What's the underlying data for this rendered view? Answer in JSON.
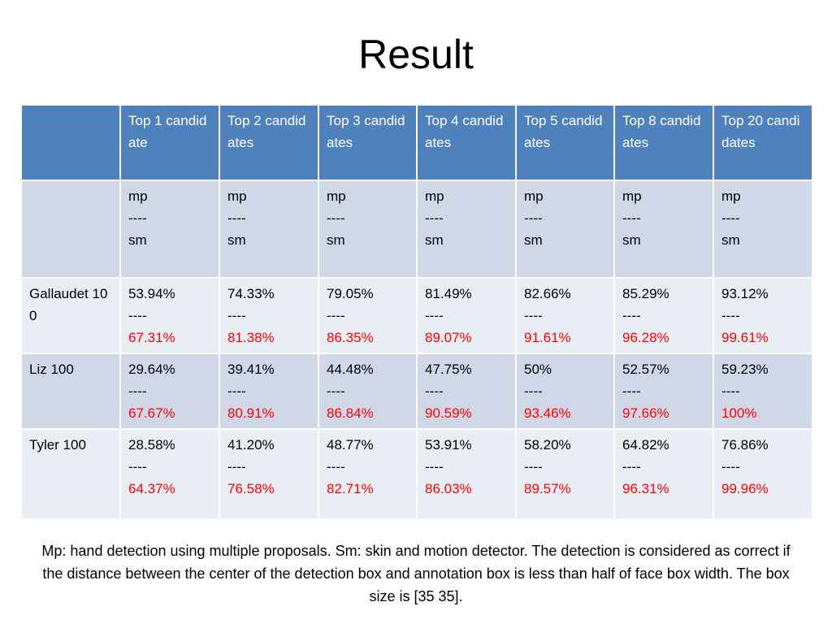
{
  "slide": {
    "title": "Result",
    "caption": "Mp: hand detection using multiple proposals. Sm: skin and motion detector. The detection is considered as correct if the distance between the center of the detection box and annotation box is less than half of face box width. The box size is [35 35]."
  },
  "table": {
    "headers": [
      "",
      "Top 1 candidate",
      "Top 2 candidates",
      "Top 3 candidates",
      "Top 4 candidates",
      "Top 5 candidates",
      "Top 8 candidates",
      "Top 20 candidates"
    ],
    "legend_row": {
      "label": "",
      "mp": "mp",
      "sep": "----",
      "sm": "sm"
    },
    "rows": [
      {
        "label": "Gallaudet 100",
        "mp": [
          "53.94%",
          "74.33%",
          "79.05%",
          "81.49%",
          "82.66%",
          "85.29%",
          "93.12%"
        ],
        "sm": [
          "67.31%",
          "81.38%",
          "86.35%",
          "89.07%",
          "91.61%",
          "96.28%",
          "99.61%"
        ]
      },
      {
        "label": "Liz 100",
        "mp": [
          "29.64%",
          "39.41%",
          "44.48%",
          "47.75%",
          "50%",
          "52.57%",
          "59.23%"
        ],
        "sm": [
          "67.67%",
          "80.91%",
          "86.84%",
          "90.59%",
          "93.46%",
          "97.66%",
          "100%"
        ]
      },
      {
        "label": "Tyler 100",
        "mp": [
          "28.58%",
          "41.20%",
          "48.77%",
          "53.91%",
          "58.20%",
          "64.82%",
          "76.86%"
        ],
        "sm": [
          "64.37%",
          "76.58%",
          "82.71%",
          "86.03%",
          "89.57%",
          "96.31%",
          "99.96%"
        ]
      }
    ],
    "separator": "----",
    "colors": {
      "header_bg": "#4f81bd",
      "row_dark": "#d0d8e8",
      "row_light": "#e9edf4",
      "sm_value": "#ff0000"
    }
  }
}
